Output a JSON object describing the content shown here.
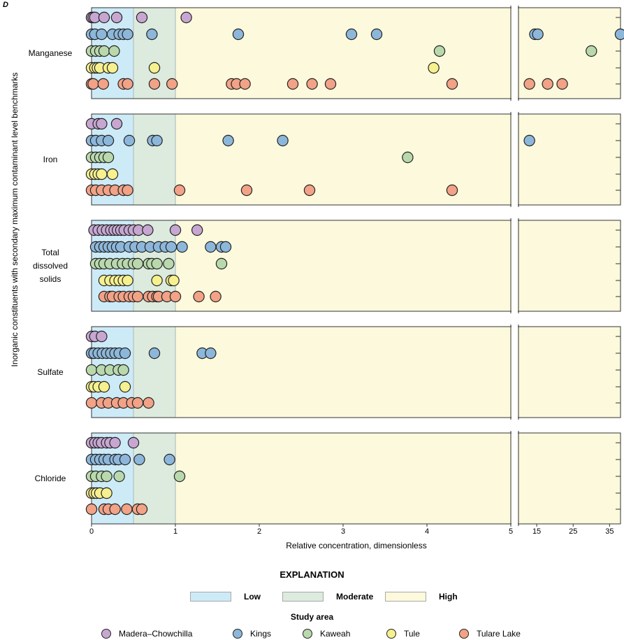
{
  "panel_letter": "D",
  "chart_data": {
    "type": "scatter",
    "title": "",
    "ylabel": "Inorganic constituents with  secondary maximum contaminant level benchmarks",
    "xlabel": "Relative concentration, dimensionless",
    "x_axis": {
      "scale": "broken",
      "segments": [
        {
          "range": [
            0,
            5
          ],
          "ticks": [
            "0",
            "1",
            "2",
            "3",
            "4",
            "5"
          ]
        },
        {
          "range": [
            10,
            38
          ],
          "ticks": [
            "15",
            "25",
            "35"
          ]
        }
      ]
    },
    "bands": [
      {
        "name": "Low",
        "range": [
          0,
          0.5
        ],
        "color": "#cdeaf7"
      },
      {
        "name": "Moderate",
        "range": [
          0.5,
          1
        ],
        "color": "#dcebdd"
      },
      {
        "name": "High",
        "range": [
          1,
          38
        ],
        "color": "#fcf9dc"
      }
    ],
    "series": [
      {
        "name": "Madera–Chowchilla",
        "color": "#c7a7d2"
      },
      {
        "name": "Kings",
        "color": "#8db7da"
      },
      {
        "name": "Kaweah",
        "color": "#b9d9ad"
      },
      {
        "name": "Tule",
        "color": "#f6f08f"
      },
      {
        "name": "Tulare Lake",
        "color": "#f2a287"
      }
    ],
    "panels": [
      {
        "constituent": [
          "Manganese"
        ],
        "data": {
          "Madera–Chowchilla": [
            0.0,
            0.02,
            0.04,
            0.15,
            0.3,
            0.6,
            1.13
          ],
          "Kings": [
            0.0,
            0.04,
            0.12,
            0.25,
            0.33,
            0.38,
            0.43,
            0.72,
            1.75,
            3.1,
            3.4,
            14.5,
            15.3,
            38
          ],
          "Kaweah": [
            0.0,
            0.05,
            0.1,
            0.15,
            0.27,
            4.15,
            30
          ],
          "Tule": [
            0.0,
            0.04,
            0.07,
            0.1,
            0.2,
            0.25,
            0.75,
            4.08
          ],
          "Tulare Lake": [
            0.0,
            0.02,
            0.14,
            0.38,
            0.43,
            0.75,
            0.96,
            1.67,
            1.73,
            1.83,
            2.4,
            2.63,
            2.85,
            4.3,
            13,
            18,
            22
          ]
        }
      },
      {
        "constituent": [
          "Iron"
        ],
        "data": {
          "Madera–Chowchilla": [
            0.0,
            0.08,
            0.12,
            0.3
          ],
          "Kings": [
            0.0,
            0.05,
            0.12,
            0.2,
            0.45,
            0.73,
            0.78,
            1.63,
            2.28,
            13
          ],
          "Kaweah": [
            0.0,
            0.05,
            0.1,
            0.15,
            0.2,
            3.77
          ],
          "Tule": [
            0.0,
            0.04,
            0.08,
            0.12,
            0.25
          ],
          "Tulare Lake": [
            0.0,
            0.05,
            0.12,
            0.2,
            0.28,
            0.38,
            0.43,
            1.05,
            1.85,
            2.6,
            4.3
          ]
        }
      },
      {
        "constituent": [
          "Total",
          "dissolved",
          "solids"
        ],
        "data": {
          "Madera–Chowchilla": [
            0.03,
            0.08,
            0.13,
            0.18,
            0.23,
            0.27,
            0.31,
            0.35,
            0.39,
            0.45,
            0.5,
            0.56,
            0.67,
            1.0,
            1.26
          ],
          "Kings": [
            0.05,
            0.1,
            0.15,
            0.2,
            0.25,
            0.3,
            0.35,
            0.45,
            0.52,
            0.6,
            0.7,
            0.8,
            0.88,
            0.95,
            1.08,
            1.42,
            1.55,
            1.6
          ],
          "Kaweah": [
            0.05,
            0.1,
            0.15,
            0.22,
            0.3,
            0.37,
            0.43,
            0.5,
            0.55,
            0.68,
            0.72,
            0.78,
            0.92,
            1.55
          ],
          "Tule": [
            0.15,
            0.22,
            0.28,
            0.33,
            0.38,
            0.43,
            0.78,
            0.95,
            0.98
          ],
          "Tulare Lake": [
            0.15,
            0.22,
            0.25,
            0.33,
            0.38,
            0.45,
            0.5,
            0.55,
            0.68,
            0.73,
            0.78,
            0.8,
            0.9,
            1.0,
            1.28,
            1.48
          ]
        }
      },
      {
        "constituent": [
          "Sulfate"
        ],
        "data": {
          "Madera–Chowchilla": [
            0.0,
            0.04,
            0.12
          ],
          "Kings": [
            0.0,
            0.03,
            0.08,
            0.13,
            0.18,
            0.23,
            0.28,
            0.33,
            0.4,
            0.75,
            1.32,
            1.42
          ],
          "Kaweah": [
            0.0,
            0.12,
            0.22,
            0.32,
            0.38
          ],
          "Tule": [
            0.0,
            0.03,
            0.08,
            0.15,
            0.4
          ],
          "Tulare Lake": [
            0.0,
            0.12,
            0.2,
            0.3,
            0.38,
            0.48,
            0.55,
            0.68
          ]
        }
      },
      {
        "constituent": [
          "Chloride"
        ],
        "data": {
          "Madera–Chowchilla": [
            0.0,
            0.04,
            0.08,
            0.12,
            0.18,
            0.22,
            0.28,
            0.5
          ],
          "Kings": [
            0.0,
            0.05,
            0.1,
            0.15,
            0.2,
            0.28,
            0.32,
            0.4,
            0.57,
            0.93
          ],
          "Kaweah": [
            0.0,
            0.05,
            0.12,
            0.18,
            0.33,
            1.05
          ],
          "Tule": [
            0.0,
            0.03,
            0.06,
            0.1,
            0.18
          ],
          "Tulare Lake": [
            0.0,
            0.15,
            0.2,
            0.28,
            0.42,
            0.55,
            0.6
          ]
        }
      }
    ]
  },
  "legend": {
    "title": "EXPLANATION",
    "levels": [
      "Low",
      "Moderate",
      "High"
    ],
    "study_area_title": "Study area",
    "study_areas": [
      "Madera–Chowchilla",
      "Kings",
      "Kaweah",
      "Tule",
      "Tulare Lake"
    ]
  }
}
